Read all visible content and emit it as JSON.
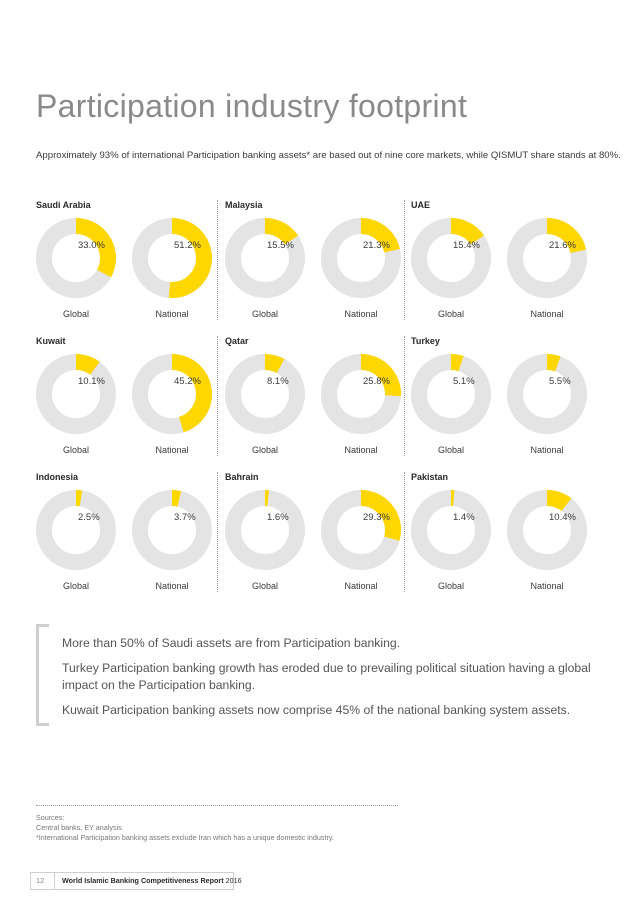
{
  "title": "Participation industry footprint",
  "subtitle": "Approximately 93% of international Participation banking assets* are based out of nine core markets, while QISMUT share stands at 80%.",
  "colors": {
    "fill": "#FFD700",
    "ring": "#E4E4E4"
  },
  "chart_data": {
    "type": "pie",
    "variant": "donut",
    "series_labels": [
      "Global",
      "National"
    ],
    "countries": [
      {
        "name": "Saudi Arabia",
        "values": [
          33.0,
          51.2
        ],
        "labels": [
          "33.0%",
          "51.2%"
        ]
      },
      {
        "name": "Malaysia",
        "values": [
          15.5,
          21.3
        ],
        "labels": [
          "15.5%",
          "21.3%"
        ]
      },
      {
        "name": "UAE",
        "values": [
          15.4,
          21.6
        ],
        "labels": [
          "15.4%",
          "21.6%"
        ]
      },
      {
        "name": "Kuwait",
        "values": [
          10.1,
          45.2
        ],
        "labels": [
          "10.1%",
          "45.2%"
        ]
      },
      {
        "name": "Qatar",
        "values": [
          8.1,
          25.8
        ],
        "labels": [
          "8.1%",
          "25.8%"
        ]
      },
      {
        "name": "Turkey",
        "values": [
          5.1,
          5.5
        ],
        "labels": [
          "5.1%",
          "5.5%"
        ]
      },
      {
        "name": "Indonesia",
        "values": [
          2.5,
          3.7
        ],
        "labels": [
          "2.5%",
          "3.7%"
        ]
      },
      {
        "name": "Bahrain",
        "values": [
          1.6,
          29.3
        ],
        "labels": [
          "1.6%",
          "29.3%"
        ]
      },
      {
        "name": "Pakistan",
        "values": [
          1.4,
          10.4
        ],
        "labels": [
          "1.4%",
          "10.4%"
        ]
      }
    ]
  },
  "quote": {
    "p1": "More than 50% of Saudi assets are from Participation banking.",
    "p2": "Turkey Participation banking growth has eroded due to prevailing political situation having a global impact on the Participation banking.",
    "p3": "Kuwait Participation banking assets now comprise 45% of the national banking system assets."
  },
  "sources": {
    "heading": "Sources:",
    "line1": "Central banks, EY analysis",
    "line2": "*International Participation banking assets exclude Iran which has a unique domestic industry."
  },
  "footer": {
    "page_number": "12",
    "report_name": "World Islamic Banking Competitiveness Report",
    "year": "2016"
  }
}
